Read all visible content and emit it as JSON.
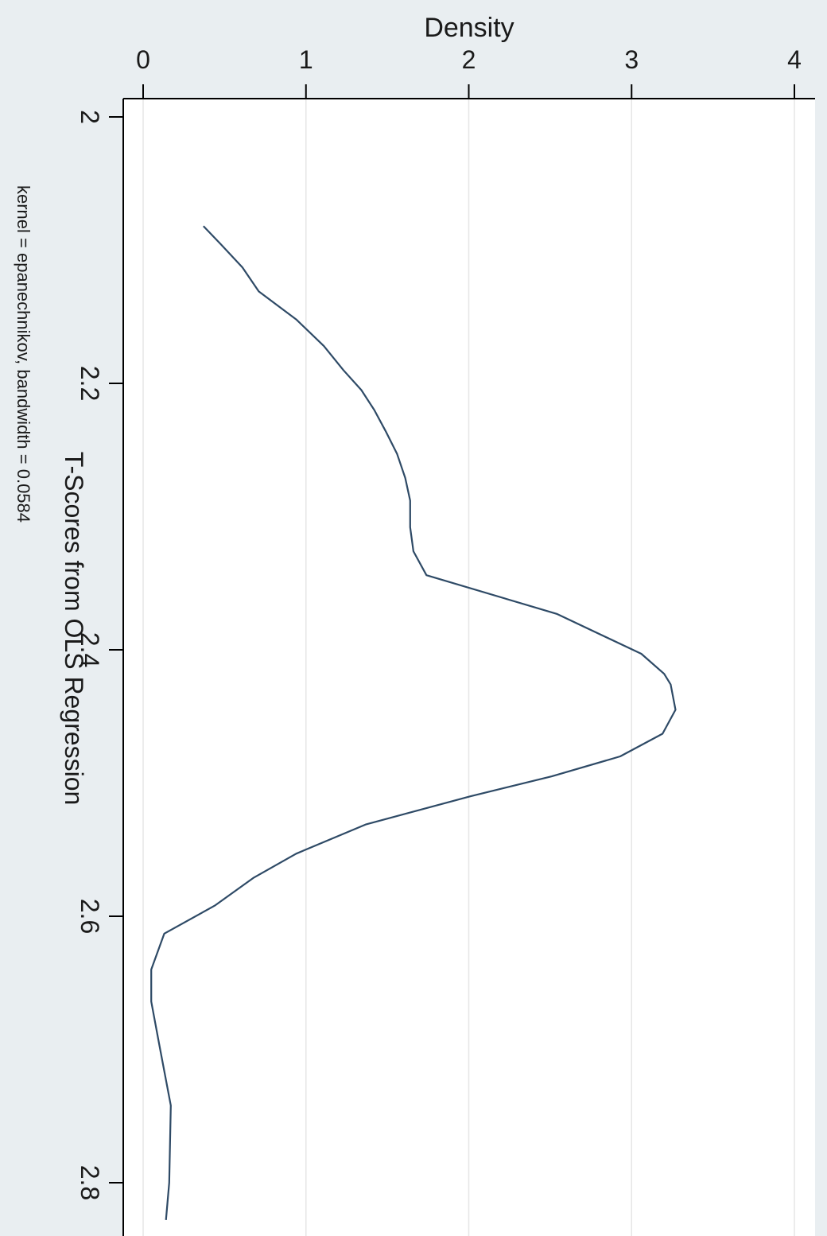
{
  "chart_data": {
    "type": "line",
    "orientation": "rotated-90",
    "title": "",
    "xlabel": "T-Scores from OLS Regression",
    "ylabel": "Density",
    "note": "kernel = epanechnikov, bandwidth = 0.0584",
    "xlim": [
      2.0,
      2.8
    ],
    "ylim": [
      0,
      4
    ],
    "x_ticks": [
      2,
      2.2,
      2.4,
      2.6,
      2.8
    ],
    "x_tick_labels": [
      "2",
      "2.2",
      "2.4",
      "2.6",
      "2.8"
    ],
    "y_ticks": [
      0,
      1,
      2,
      3,
      4
    ],
    "y_tick_labels": [
      "0",
      "1",
      "2",
      "3",
      "4"
    ],
    "grid": true,
    "colors": {
      "background": "#e9eef1",
      "plot_area": "#ffffff",
      "line": "#2e4a66",
      "grid": "#e6e6e6",
      "axis": "#000000"
    },
    "series": [
      {
        "x": [
          2.082,
          2.096,
          2.113,
          2.131,
          2.152,
          2.172,
          2.19,
          2.205,
          2.22,
          2.236,
          2.253,
          2.271,
          2.288,
          2.308,
          2.326,
          2.344,
          2.373,
          2.403,
          2.418,
          2.426,
          2.445,
          2.463,
          2.48,
          2.495,
          2.51,
          2.531,
          2.553,
          2.571,
          2.592,
          2.613,
          2.64,
          2.664,
          2.697,
          2.742,
          2.8,
          2.828
        ],
        "y": [
          0.37,
          0.48,
          0.61,
          0.71,
          0.94,
          1.11,
          1.23,
          1.34,
          1.42,
          1.49,
          1.56,
          1.61,
          1.64,
          1.64,
          1.66,
          1.74,
          2.54,
          3.06,
          3.2,
          3.24,
          3.27,
          3.19,
          2.93,
          2.51,
          2.01,
          1.37,
          0.94,
          0.68,
          0.44,
          0.13,
          0.05,
          0.05,
          0.1,
          0.17,
          0.16,
          0.14
        ]
      }
    ]
  }
}
